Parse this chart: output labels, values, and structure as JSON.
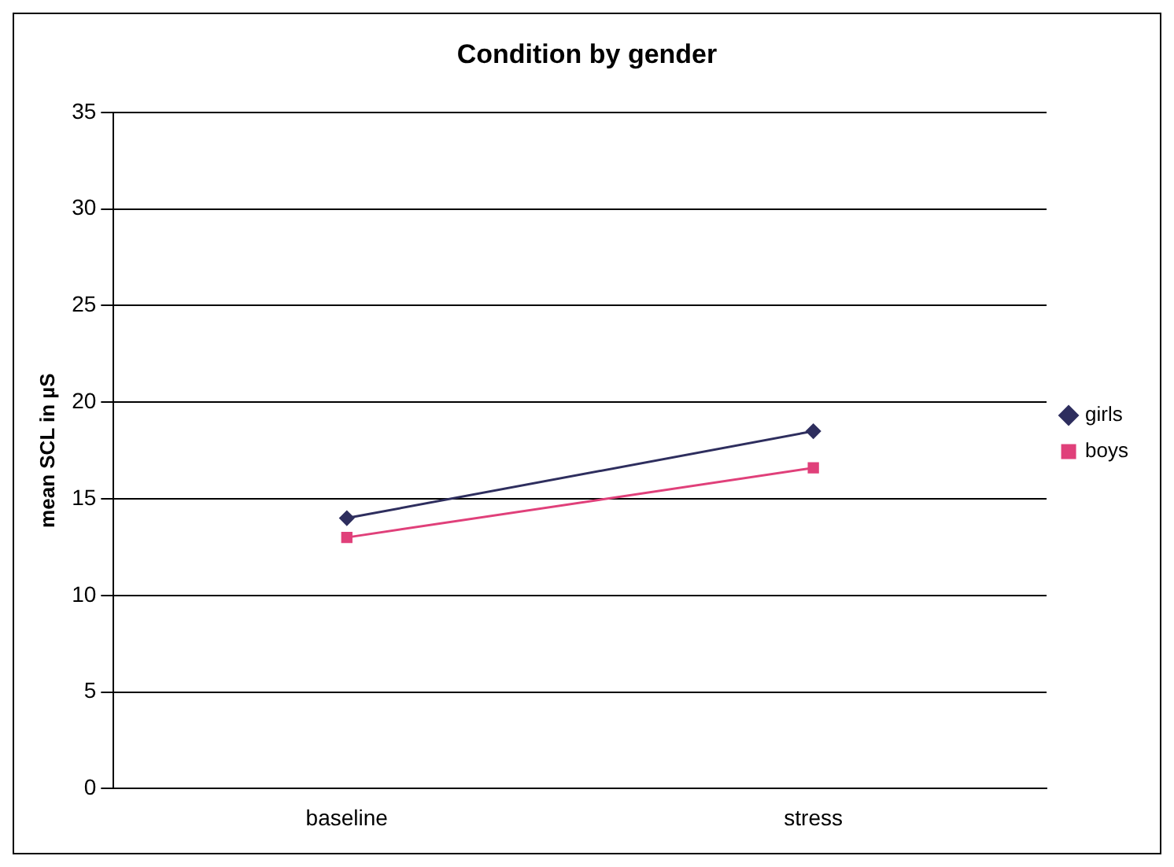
{
  "chart_data": {
    "type": "line",
    "title": "Condition by gender",
    "ylabel": "mean SCL in µS",
    "categories": [
      "baseline",
      "stress"
    ],
    "series": [
      {
        "name": "girls",
        "color": "#2e2e5e",
        "values": [
          14.0,
          18.5
        ],
        "marker": "diamond"
      },
      {
        "name": "boys",
        "color": "#e0407a",
        "values": [
          13.0,
          16.6
        ],
        "marker": "square"
      }
    ],
    "ylim": [
      0,
      35
    ],
    "yticks": [
      0,
      5,
      10,
      15,
      20,
      25,
      30,
      35
    ],
    "grid": "y",
    "legend": "right",
    "line_style": "solid"
  }
}
